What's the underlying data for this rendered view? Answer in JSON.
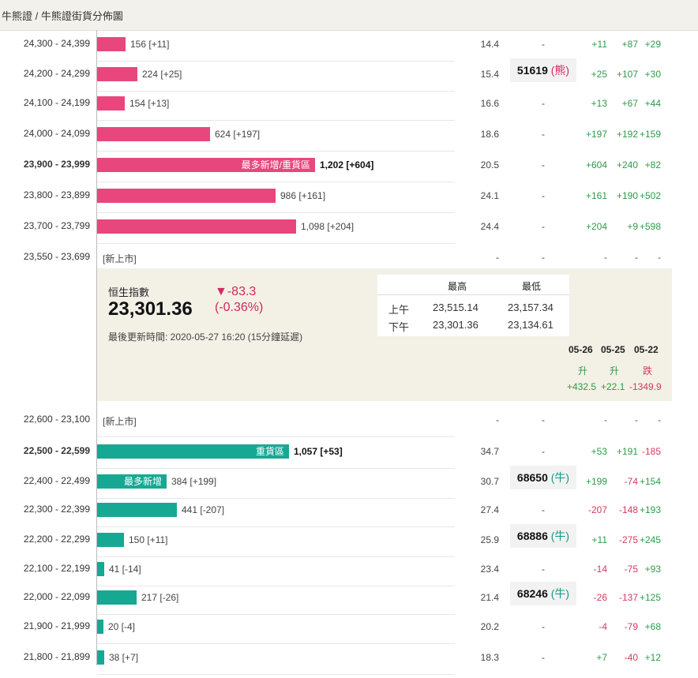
{
  "breadcrumb": "牛熊證 / 牛熊證街貨分佈圖",
  "bear_rows": [
    {
      "range": "24,300 - 24,399",
      "count": "156 [+11]",
      "ratio": "14.4",
      "code": "-",
      "chg": [
        "+11",
        "+87",
        "+29"
      ]
    },
    {
      "range": "24,200 - 24,299",
      "count": "224 [+25]",
      "ratio": "15.4",
      "code": "51619",
      "code_tag": "(熊)",
      "chg": [
        "+25",
        "+107",
        "+30"
      ]
    },
    {
      "range": "24,100 - 24,199",
      "count": "154 [+13]",
      "ratio": "16.6",
      "code": "-",
      "chg": [
        "+13",
        "+67",
        "+44"
      ]
    },
    {
      "range": "24,000 - 24,099",
      "count": "624 [+197]",
      "ratio": "18.6",
      "code": "-",
      "chg": [
        "+197",
        "+192",
        "+159"
      ]
    },
    {
      "range": "23,900 - 23,999",
      "count": "1,202 [+604]",
      "ratio": "20.5",
      "code": "-",
      "chg": [
        "+604",
        "+240",
        "+82"
      ],
      "tag": "最多新增/重貨區",
      "bold": true
    },
    {
      "range": "23,800 - 23,899",
      "count": "986 [+161]",
      "ratio": "24.1",
      "code": "-",
      "chg": [
        "+161",
        "+190",
        "+502"
      ]
    },
    {
      "range": "23,700 - 23,799",
      "count": "1,098 [+204]",
      "ratio": "24.4",
      "code": "-",
      "chg": [
        "+204",
        "+9",
        "+598"
      ]
    },
    {
      "range": "23,550 - 23,699",
      "newlist": "[新上市]",
      "ratio": "-",
      "code": "-",
      "chg": [
        "-",
        "-",
        "-"
      ]
    }
  ],
  "index": {
    "name": "恒生指數",
    "value": "23,301.36",
    "change": "▼-83.3",
    "change_pct": "(-0.36%)",
    "updated": "最後更新時間: 2020-05-27 16:20 (15分鐘延遲)",
    "table_head": [
      "最高",
      "最低"
    ],
    "table_rows": [
      {
        "label": "上午",
        "high": "23,515.14",
        "low": "23,157.34"
      },
      {
        "label": "下午",
        "high": "23,301.36",
        "low": "23,134.61"
      }
    ],
    "dates": [
      "05-26",
      "05-25",
      "05-22"
    ],
    "trend_labels": [
      "升",
      "升",
      "跌"
    ],
    "trend_values": [
      "+432.5",
      "+22.1",
      "-1349.9"
    ]
  },
  "bull_rows": [
    {
      "range": "22,600 - 23,100",
      "newlist": "[新上市]",
      "ratio": "-",
      "code": "-",
      "chg": [
        "-",
        "-",
        "-"
      ]
    },
    {
      "range": "22,500 - 22,599",
      "count": "1,057 [+53]",
      "ratio": "34.7",
      "code": "-",
      "chg": [
        "+53",
        "+191",
        "-185"
      ],
      "tag": "重貨區",
      "bold": true
    },
    {
      "range": "22,400 - 22,499",
      "count": "384 [+199]",
      "ratio": "30.7",
      "code": "68650",
      "code_tag": "(牛)",
      "chg": [
        "+199",
        "-74",
        "+154"
      ],
      "tag": "最多新增"
    },
    {
      "range": "22,300 - 22,399",
      "count": "441 [-207]",
      "ratio": "27.4",
      "code": "-",
      "chg": [
        "-207",
        "-148",
        "+193"
      ]
    },
    {
      "range": "22,200 - 22,299",
      "count": "150 [+11]",
      "ratio": "25.9",
      "code": "68886",
      "code_tag": "(牛)",
      "chg": [
        "+11",
        "-275",
        "+245"
      ]
    },
    {
      "range": "22,100 - 22,199",
      "count": "41 [-14]",
      "ratio": "23.4",
      "code": "-",
      "chg": [
        "-14",
        "-75",
        "+93"
      ]
    },
    {
      "range": "22,000 - 22,099",
      "count": "217 [-26]",
      "ratio": "21.4",
      "code": "68246",
      "code_tag": "(牛)",
      "chg": [
        "-26",
        "-137",
        "+125"
      ]
    },
    {
      "range": "21,900 - 21,999",
      "count": "20 [-4]",
      "ratio": "20.2",
      "code": "-",
      "chg": [
        "-4",
        "-79",
        "+68"
      ]
    },
    {
      "range": "21,800 - 21,899",
      "count": "38 [+7]",
      "ratio": "18.3",
      "code": "-",
      "chg": [
        "+7",
        "-40",
        "+12"
      ]
    }
  ],
  "colors": {
    "bear": "#e8477e",
    "bull": "#17a894",
    "pos": "#2e9b4a",
    "neg": "#d33a5e"
  }
}
